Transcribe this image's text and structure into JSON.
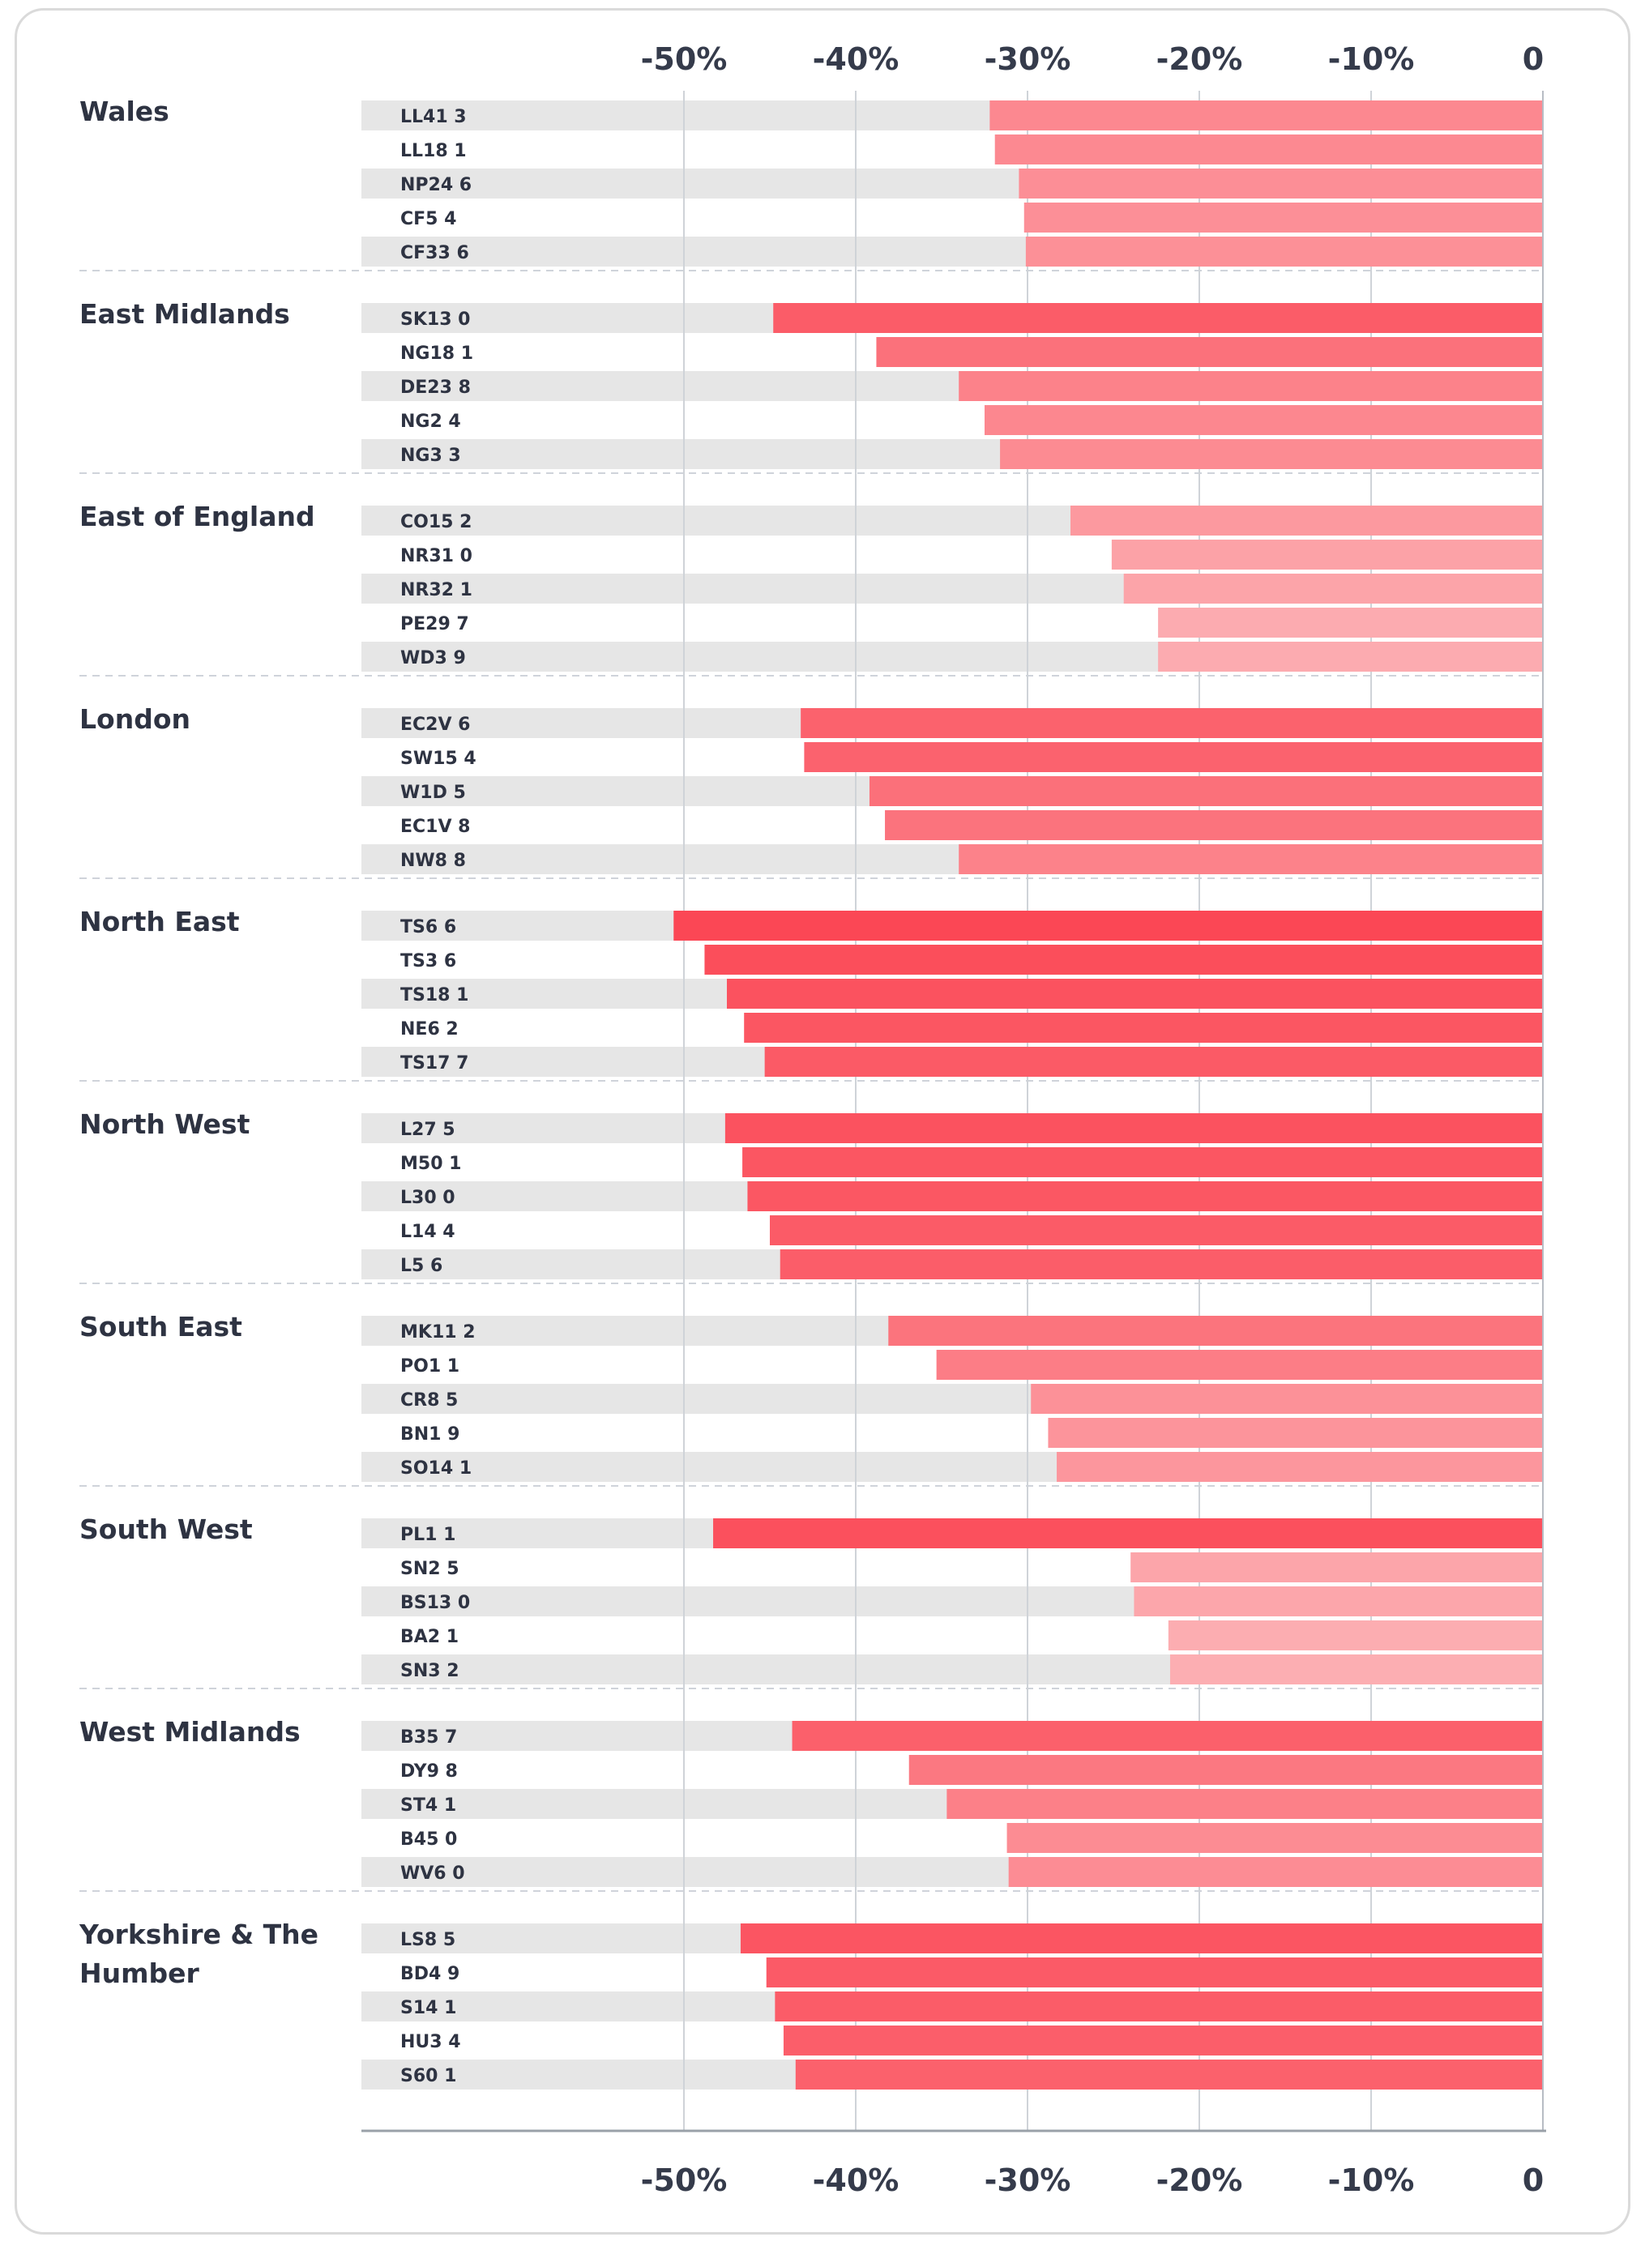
{
  "chart_data": {
    "type": "bar",
    "orientation": "horizontal",
    "x_ticks": [
      {
        "value": -50,
        "label": "-50%"
      },
      {
        "value": -40,
        "label": "-40%"
      },
      {
        "value": -30,
        "label": "-30%"
      },
      {
        "value": -20,
        "label": "-20%"
      },
      {
        "value": -10,
        "label": "-10%"
      },
      {
        "value": 0,
        "label": "0"
      }
    ],
    "xlim": [
      -70,
      0
    ],
    "groups": [
      {
        "region": "Wales",
        "rows": [
          {
            "label": "LL41 3",
            "value": -32.2
          },
          {
            "label": "LL18 1",
            "value": -31.9
          },
          {
            "label": "NP24 6",
            "value": -30.5
          },
          {
            "label": "CF5 4",
            "value": -30.2
          },
          {
            "label": "CF33 6",
            "value": -30.1
          }
        ]
      },
      {
        "region": "East Midlands",
        "rows": [
          {
            "label": "SK13 0",
            "value": -44.8
          },
          {
            "label": "NG18 1",
            "value": -38.8
          },
          {
            "label": "DE23 8",
            "value": -34.0
          },
          {
            "label": "NG2 4",
            "value": -32.5
          },
          {
            "label": "NG3 3",
            "value": -31.6
          }
        ]
      },
      {
        "region": "East of England",
        "rows": [
          {
            "label": "CO15 2",
            "value": -27.5
          },
          {
            "label": "NR31 0",
            "value": -25.1
          },
          {
            "label": "NR32 1",
            "value": -24.4
          },
          {
            "label": "PE29 7",
            "value": -22.4
          },
          {
            "label": "WD3 9",
            "value": -22.4
          }
        ]
      },
      {
        "region": "London",
        "rows": [
          {
            "label": "EC2V 6",
            "value": -43.2
          },
          {
            "label": "SW15 4",
            "value": -43.0
          },
          {
            "label": "W1D 5",
            "value": -39.2
          },
          {
            "label": "EC1V 8",
            "value": -38.3
          },
          {
            "label": "NW8 8",
            "value": -34.0
          }
        ]
      },
      {
        "region": "North East",
        "rows": [
          {
            "label": "TS6 6",
            "value": -50.6
          },
          {
            "label": "TS3 6",
            "value": -48.8
          },
          {
            "label": "TS18 1",
            "value": -47.5
          },
          {
            "label": "NE6 2",
            "value": -46.5
          },
          {
            "label": "TS17 7",
            "value": -45.3
          }
        ]
      },
      {
        "region": "North West",
        "rows": [
          {
            "label": "L27 5",
            "value": -47.6
          },
          {
            "label": "M50 1",
            "value": -46.6
          },
          {
            "label": "L30 0",
            "value": -46.3
          },
          {
            "label": "L14 4",
            "value": -45.0
          },
          {
            "label": "L5 6",
            "value": -44.4
          }
        ]
      },
      {
        "region": "South East",
        "rows": [
          {
            "label": "MK11 2",
            "value": -38.1
          },
          {
            "label": "PO1 1",
            "value": -35.3
          },
          {
            "label": "CR8 5",
            "value": -29.8
          },
          {
            "label": "BN1 9",
            "value": -28.8
          },
          {
            "label": "SO14 1",
            "value": -28.3
          }
        ]
      },
      {
        "region": "South West",
        "rows": [
          {
            "label": "PL1 1",
            "value": -48.3
          },
          {
            "label": "SN2 5",
            "value": -24.0
          },
          {
            "label": "BS13 0",
            "value": -23.8
          },
          {
            "label": "BA2 1",
            "value": -21.8
          },
          {
            "label": "SN3 2",
            "value": -21.7
          }
        ]
      },
      {
        "region": "West Midlands",
        "rows": [
          {
            "label": "B35 7",
            "value": -43.7
          },
          {
            "label": "DY9 8",
            "value": -36.9
          },
          {
            "label": "ST4 1",
            "value": -34.7
          },
          {
            "label": "B45 0",
            "value": -31.2
          },
          {
            "label": "WV6 0",
            "value": -31.1
          }
        ]
      },
      {
        "region": "Yorkshire & The Humber",
        "rows": [
          {
            "label": "LS8 5",
            "value": -46.7
          },
          {
            "label": "BD4 9",
            "value": -45.2
          },
          {
            "label": "S14 1",
            "value": -44.7
          },
          {
            "label": "HU3 4",
            "value": -44.2
          },
          {
            "label": "S60 1",
            "value": -43.5
          }
        ]
      }
    ]
  }
}
